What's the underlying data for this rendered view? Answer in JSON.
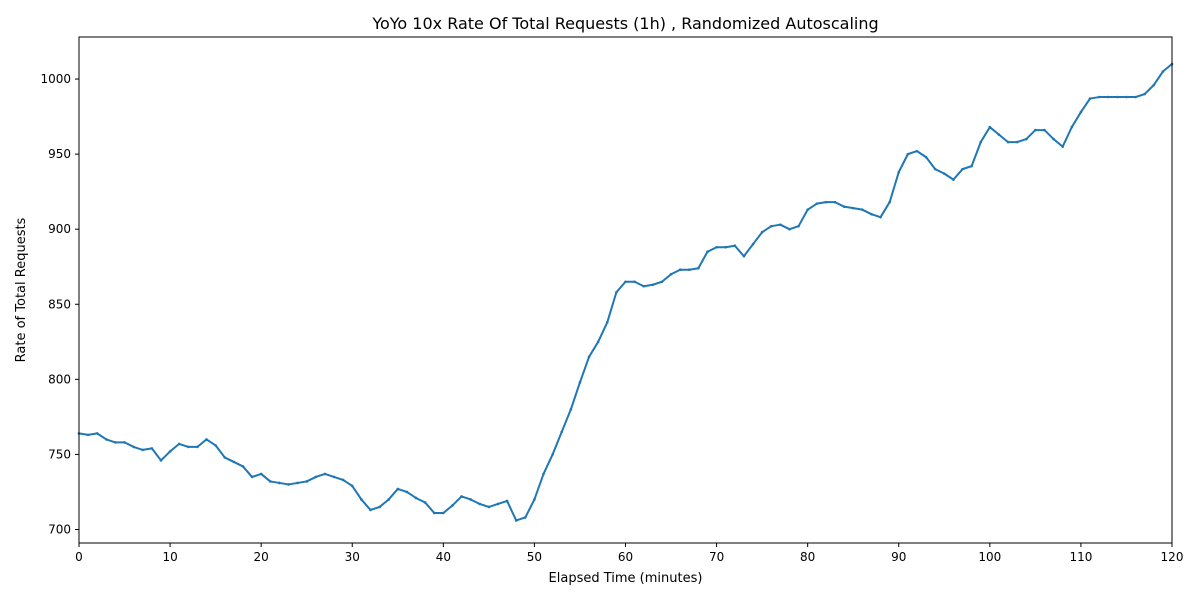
{
  "chart_data": {
    "type": "line",
    "title": "YoYo 10x Rate Of Total Requests (1h) , Randomized Autoscaling",
    "xlabel": "Elapsed Time (minutes)",
    "ylabel": "Rate of Total Requests",
    "xlim": [
      0,
      120
    ],
    "ylim": [
      691,
      1028
    ],
    "xticks": [
      0,
      10,
      20,
      30,
      40,
      50,
      60,
      70,
      80,
      90,
      100,
      110,
      120
    ],
    "yticks": [
      700,
      750,
      800,
      850,
      900,
      950,
      1000
    ],
    "grid": false,
    "legend": "none",
    "colors": {
      "line": "#1f77b4"
    },
    "series": [
      {
        "x": [
          0,
          1,
          2,
          3,
          4,
          5,
          6,
          7,
          8,
          9,
          10,
          11,
          12,
          13,
          14,
          15,
          16,
          17,
          18,
          19,
          20,
          21,
          22,
          23,
          24,
          25,
          26,
          27,
          28,
          29,
          30,
          31,
          32,
          33,
          34,
          35,
          36,
          37,
          38,
          39,
          40,
          41,
          42,
          43,
          44,
          45,
          46,
          47,
          48,
          49,
          50,
          51,
          52,
          53,
          54,
          55,
          56,
          57,
          58,
          59,
          60,
          61,
          62,
          63,
          64,
          65,
          66,
          67,
          68,
          69,
          70,
          71,
          72,
          73,
          74,
          75,
          76,
          77,
          78,
          79,
          80,
          81,
          82,
          83,
          84,
          85,
          86,
          87,
          88,
          89,
          90,
          91,
          92,
          93,
          94,
          95,
          96,
          97,
          98,
          99,
          100,
          101,
          102,
          103,
          104,
          105,
          106,
          107,
          108,
          109,
          110,
          111,
          112,
          113,
          114,
          115,
          116,
          117,
          118,
          119,
          120
        ],
        "values": [
          764,
          763,
          764,
          760,
          758,
          758,
          755,
          753,
          754,
          746,
          752,
          757,
          755,
          755,
          760,
          756,
          748,
          745,
          742,
          735,
          737,
          732,
          731,
          730,
          731,
          732,
          735,
          737,
          735,
          733,
          729,
          720,
          713,
          715,
          720,
          727,
          725,
          721,
          718,
          711,
          711,
          716,
          722,
          720,
          717,
          715,
          717,
          719,
          706,
          708,
          720,
          737,
          750,
          765,
          780,
          798,
          815,
          825,
          838,
          858,
          865,
          865,
          862,
          863,
          865,
          870,
          873,
          873,
          874,
          885,
          888,
          888,
          889,
          882,
          890,
          898,
          902,
          903,
          900,
          902,
          913,
          917,
          918,
          918,
          915,
          914,
          913,
          910,
          908,
          918,
          938,
          950,
          952,
          948,
          940,
          937,
          933,
          940,
          942,
          958,
          968,
          963,
          958,
          958,
          960,
          966,
          966,
          960,
          955,
          968,
          978,
          987,
          988,
          988,
          988,
          988,
          988,
          990,
          996,
          1005,
          1010
        ]
      }
    ]
  }
}
